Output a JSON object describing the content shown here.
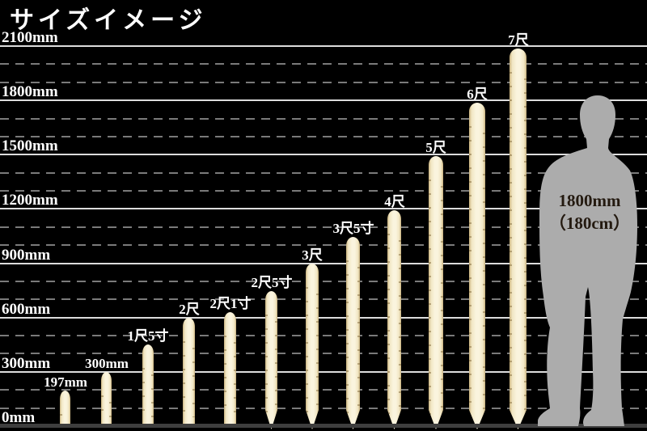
{
  "page": {
    "title": "サイズイメージ"
  },
  "chart_data": {
    "type": "bar",
    "title": "サイズイメージ",
    "categories": [
      "197mm",
      "300mm",
      "1尺5寸",
      "2尺",
      "2尺1寸",
      "2尺5寸",
      "3尺",
      "3尺5寸",
      "4尺",
      "5尺",
      "6尺",
      "7尺"
    ],
    "values_mm": [
      197,
      300,
      454.5,
      606,
      636.3,
      757.5,
      909,
      1060.5,
      1212,
      1515,
      1818,
      2121
    ],
    "pointed_tip": [
      false,
      false,
      false,
      false,
      false,
      true,
      true,
      true,
      true,
      true,
      true,
      true
    ],
    "y_axis": {
      "ticks": [
        {
          "label": "0mm",
          "mm": 0
        },
        {
          "label": "300mm",
          "mm": 300
        },
        {
          "label": "600mm",
          "mm": 600
        },
        {
          "label": "900mm",
          "mm": 900
        },
        {
          "label": "1200mm",
          "mm": 1200
        },
        {
          "label": "1500mm",
          "mm": 1500
        },
        {
          "label": "1800mm",
          "mm": 1800
        },
        {
          "label": "2100mm",
          "mm": 2100
        }
      ],
      "minor_step_mm": 100,
      "ylim": [
        0,
        2100
      ]
    },
    "grid": {
      "major": "solid",
      "minor": "dashed"
    },
    "legend_position": "none",
    "reference_figure": {
      "label_line1": "1800mm",
      "label_line2": "（180cm）",
      "height_mm": 1800
    }
  },
  "colors": {
    "background": "#000000",
    "title_text": "#ffffff",
    "axis_label_text": "#ffffff",
    "stake_label_text": "#ffffff",
    "stake_light": "#faf4de",
    "stake_mid": "#f1e6c3",
    "stake_edge": "#c9b27e",
    "stake_notch": "#8a7446",
    "grid_solid": "#dcdcdc",
    "grid_dashed": "#8f8f8f",
    "baseline": "#3e3e3e",
    "silhouette": "#acacac",
    "figure_text": "#241a10"
  }
}
